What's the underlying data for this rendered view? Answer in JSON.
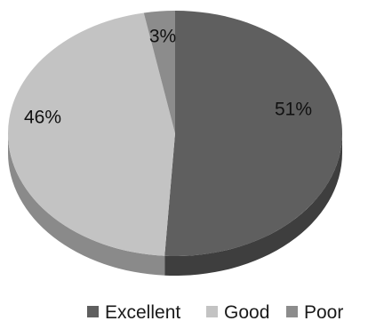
{
  "chart_data": {
    "type": "pie",
    "style": "3d",
    "slices": [
      {
        "label": "Excellent",
        "value": 51,
        "display": "51%",
        "color": "#5f5f5f",
        "side_color": "#3e3e3e"
      },
      {
        "label": "Good",
        "value": 46,
        "display": "46%",
        "color": "#c3c3c3",
        "side_color": "#8a8a8a"
      },
      {
        "label": "Poor",
        "value": 3,
        "display": "3%",
        "color": "#8c8c8c",
        "side_color": "#5a5a5a"
      }
    ],
    "legend": {
      "position": "bottom-right",
      "entries": [
        "Excellent",
        "Good",
        "Poor"
      ]
    }
  }
}
